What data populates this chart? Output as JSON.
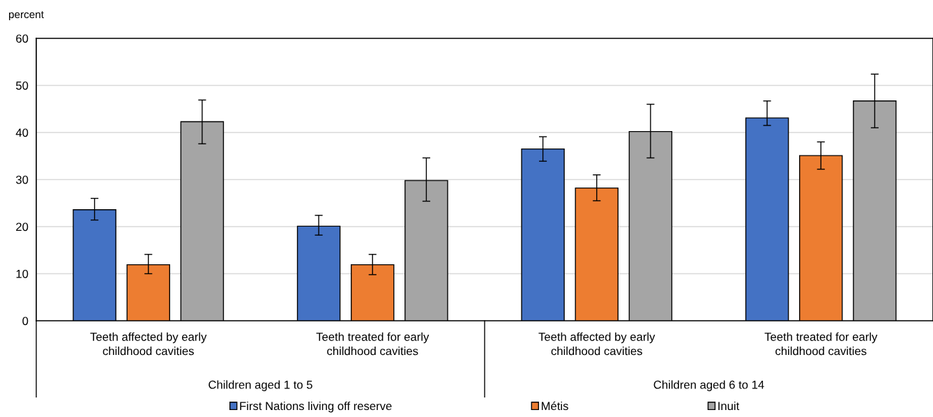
{
  "chart_data": {
    "type": "bar",
    "ylabel": "percent",
    "categories": [
      "Teeth affected by early\nchildhood cavities",
      "Teeth treated for early\nchildhood cavities",
      "Teeth affected by early\nchildhood cavities",
      "Teeth treated for early\nchildhood cavities"
    ],
    "series": [
      {
        "name": "First Nations living off reserve",
        "color": "#4472c4",
        "values": [
          23.6,
          20.1,
          36.5,
          43.1
        ],
        "errors": [
          [
            21.4,
            26.0
          ],
          [
            18.2,
            22.4
          ],
          [
            33.9,
            39.1
          ],
          [
            41.5,
            46.7
          ]
        ]
      },
      {
        "name": "Métis",
        "color": "#ed7d31",
        "values": [
          11.9,
          11.9,
          28.2,
          35.1
        ],
        "errors": [
          [
            10.0,
            14.1
          ],
          [
            9.8,
            14.1
          ],
          [
            25.5,
            31.0
          ],
          [
            32.2,
            38.0
          ]
        ]
      },
      {
        "name": "Inuit",
        "color": "#a5a5a5",
        "values": [
          42.3,
          29.8,
          40.2,
          46.7
        ],
        "errors": [
          [
            37.6,
            46.9
          ],
          [
            25.4,
            34.6
          ],
          [
            34.6,
            46.0
          ],
          [
            41.0,
            52.4
          ]
        ]
      }
    ],
    "annotations": [
      "Children aged 1 to 5",
      "Children aged 6 to 14"
    ],
    "ylim": [
      0,
      60
    ],
    "yticks": [
      0,
      10,
      20,
      30,
      40,
      50,
      60
    ],
    "grid": "y",
    "legend": "bottom"
  }
}
